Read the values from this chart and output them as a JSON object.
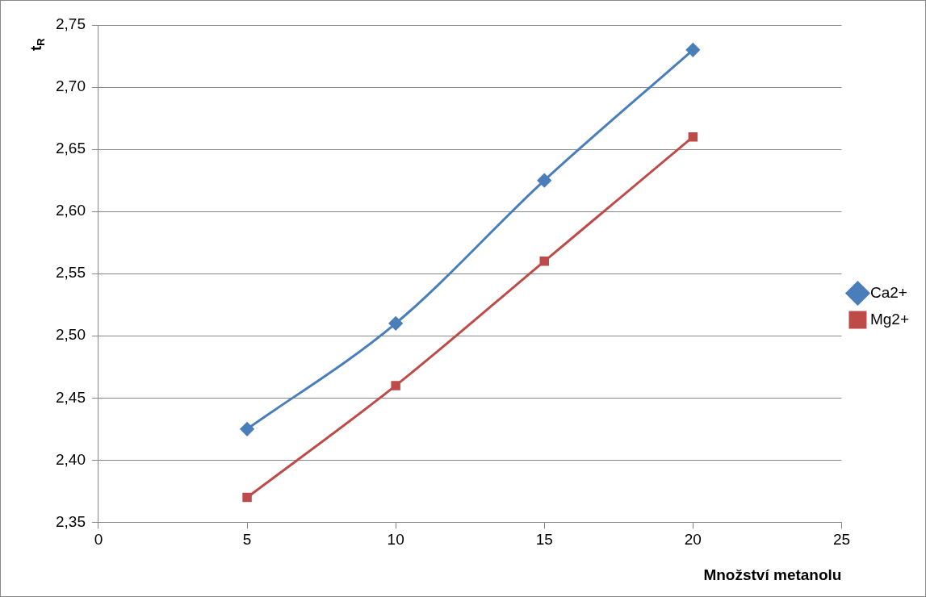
{
  "chart_data": {
    "type": "line",
    "xlabel": "Množství metanolu",
    "ylabel": "t$_{R}$",
    "series": [
      {
        "name": "Ca2+",
        "color": "#4a7ebb",
        "marker": "diamond",
        "x": [
          5,
          10,
          15,
          20
        ],
        "values": [
          2.425,
          2.51,
          2.625,
          2.73
        ]
      },
      {
        "name": "Mg2+",
        "color": "#be4b48",
        "marker": "square",
        "x": [
          5,
          10,
          15,
          20
        ],
        "values": [
          2.37,
          2.46,
          2.56,
          2.66
        ]
      }
    ],
    "xlim": [
      0,
      25
    ],
    "xticks": [
      0,
      5,
      10,
      15,
      20,
      25
    ],
    "ylim": [
      2.35,
      2.75
    ],
    "yticks": [
      {
        "value": 2.35,
        "label": "2,35"
      },
      {
        "value": 2.4,
        "label": "2,40"
      },
      {
        "value": 2.45,
        "label": "2,45"
      },
      {
        "value": 2.5,
        "label": "2,50"
      },
      {
        "value": 2.55,
        "label": "2,55"
      },
      {
        "value": 2.6,
        "label": "2,60"
      },
      {
        "value": 2.65,
        "label": "2,65"
      },
      {
        "value": 2.7,
        "label": "2,70"
      },
      {
        "value": 2.75,
        "label": "2,75"
      }
    ],
    "grid": "y",
    "legend": "right"
  }
}
